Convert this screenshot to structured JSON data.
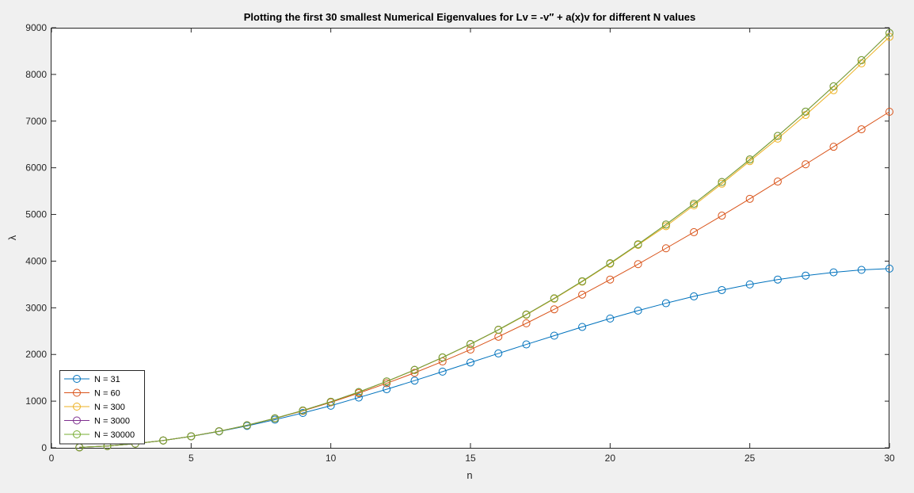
{
  "chart_data": {
    "type": "line",
    "title": "Plotting the first 30 smallest Numerical Eigenvalues for Lv = -v′′ + a(x)v for different N values",
    "xlabel": "n",
    "ylabel": "λ",
    "xlim": [
      0,
      30
    ],
    "ylim": [
      0,
      9000
    ],
    "xticks": [
      0,
      5,
      10,
      15,
      20,
      25,
      30
    ],
    "yticks": [
      0,
      1000,
      2000,
      3000,
      4000,
      5000,
      6000,
      7000,
      8000,
      9000
    ],
    "grid": false,
    "legend_position": "bottom-left",
    "marker": "circle",
    "x": [
      1,
      2,
      3,
      4,
      5,
      6,
      7,
      8,
      9,
      10,
      11,
      12,
      13,
      14,
      15,
      16,
      17,
      18,
      19,
      20,
      21,
      22,
      23,
      24,
      25,
      26,
      27,
      28,
      29,
      30
    ],
    "series": [
      {
        "name": "N = 31",
        "color": "#0072BD",
        "values": [
          10,
          39,
          89,
          158,
          245,
          351,
          469,
          603,
          747,
          902,
          1077,
          1255,
          1440,
          1632,
          1828,
          2022,
          2215,
          2403,
          2590,
          2770,
          2940,
          3098,
          3245,
          3380,
          3500,
          3605,
          3690,
          3760,
          3812,
          3840
        ]
      },
      {
        "name": "N = 60",
        "color": "#D95319",
        "values": [
          10,
          39,
          89,
          158,
          247,
          355,
          482,
          628,
          792,
          974,
          1172,
          1383,
          1607,
          1850,
          2105,
          2380,
          2668,
          2968,
          3282,
          3605,
          3935,
          4275,
          4620,
          4975,
          5335,
          5705,
          6075,
          6450,
          6825,
          7200
        ]
      },
      {
        "name": "N = 300",
        "color": "#EDB120",
        "values": [
          10,
          39,
          89,
          158,
          247,
          355,
          483,
          631,
          799,
          986,
          1193,
          1420,
          1667,
          1933,
          2219,
          2524,
          2849,
          3194,
          3559,
          3943,
          4347,
          4749,
          5194,
          5658,
          6142,
          6625,
          7131,
          7662,
          8237,
          8805
        ]
      },
      {
        "name": "N = 3000",
        "color": "#7E2F8E",
        "values": [
          10,
          39,
          89,
          158,
          247,
          355,
          484,
          632,
          800,
          988,
          1195,
          1423,
          1670,
          1937,
          2224,
          2530,
          2857,
          3203,
          3569,
          3955,
          4361,
          4785,
          5229,
          5695,
          6178,
          6681,
          7203,
          7745,
          8305,
          8887
        ]
      },
      {
        "name": "N = 30000",
        "color": "#77AC30",
        "values": [
          10,
          39,
          89,
          158,
          247,
          355,
          484,
          632,
          800,
          988,
          1195,
          1423,
          1670,
          1937,
          2224,
          2530,
          2857,
          3203,
          3569,
          3955,
          4361,
          4785,
          5229,
          5695,
          6178,
          6681,
          7203,
          7745,
          8305,
          8887
        ]
      }
    ]
  }
}
